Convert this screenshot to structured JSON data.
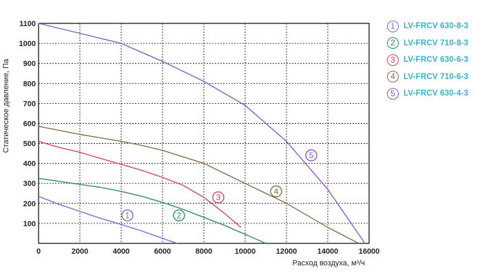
{
  "chart_data": {
    "type": "line",
    "xlabel": "Расход воздуха, м³/ч",
    "ylabel": "Статическое давление, Па",
    "xlim": [
      0,
      16000
    ],
    "ylim": [
      0,
      1100
    ],
    "x_ticks": [
      "0",
      "2000",
      "4000",
      "6000",
      "8000",
      "10000",
      "12000",
      "14000",
      "16000"
    ],
    "y_ticks": [
      "100",
      "200",
      "300",
      "400",
      "500",
      "600",
      "700",
      "800",
      "900",
      "1000",
      "1100"
    ],
    "grid": true,
    "legend_position": "right",
    "series": [
      {
        "name": "LV-FRCV 630-8-3",
        "marker": "1",
        "color": "#6f6fd6",
        "x": [
          0,
          1000,
          2000,
          3000,
          4000,
          5000,
          6000,
          6700
        ],
        "y": [
          235,
          195,
          160,
          125,
          95,
          62,
          25,
          0
        ]
      },
      {
        "name": "LV-FRCV 710-8-3",
        "marker": "2",
        "color": "#2f8f5a",
        "x": [
          0,
          1000,
          2000,
          3000,
          4000,
          5000,
          6000,
          7000,
          8000,
          9000,
          10000,
          11000
        ],
        "y": [
          325,
          310,
          295,
          280,
          260,
          235,
          205,
          170,
          130,
          90,
          45,
          0
        ]
      },
      {
        "name": "LV-FRCV 630-6-3",
        "marker": "3",
        "color": "#d04a5a",
        "x": [
          0,
          1000,
          2000,
          3000,
          4000,
          5000,
          6000,
          7000,
          8000,
          9000,
          9800
        ],
        "y": [
          510,
          480,
          455,
          425,
          395,
          365,
          330,
          290,
          230,
          150,
          80
        ]
      },
      {
        "name": "LV-FRCV 710-6-3",
        "marker": "4",
        "color": "#8a6a4a",
        "x": [
          0,
          2000,
          4000,
          5000,
          6000,
          8000,
          10000,
          12000,
          14000,
          15500
        ],
        "y": [
          585,
          545,
          510,
          490,
          465,
          400,
          300,
          200,
          80,
          0
        ]
      },
      {
        "name": "LV-FRCV 630-4-3",
        "marker": "5",
        "color": "#8a5ac8",
        "x": [
          0,
          2000,
          4000,
          6000,
          8000,
          10000,
          12000,
          14000,
          15800
        ],
        "y": [
          1100,
          1050,
          1000,
          910,
          810,
          690,
          510,
          270,
          0
        ]
      }
    ],
    "curve_labels": [
      {
        "marker": "1",
        "x": 4300,
        "y": 140
      },
      {
        "marker": "2",
        "x": 6800,
        "y": 140
      },
      {
        "marker": "3",
        "x": 8700,
        "y": 230
      },
      {
        "marker": "4",
        "x": 11500,
        "y": 260
      },
      {
        "marker": "5",
        "x": 13200,
        "y": 440
      }
    ]
  }
}
